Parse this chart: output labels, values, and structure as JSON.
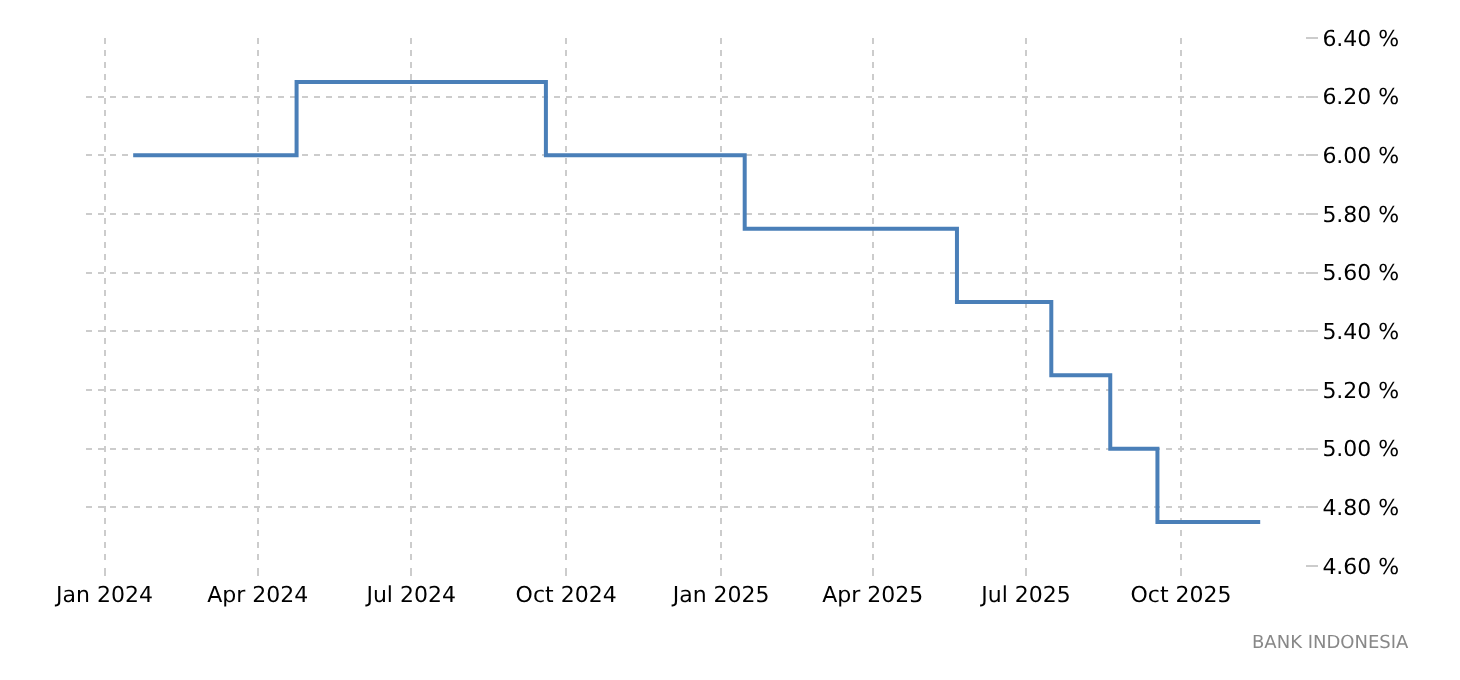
{
  "chart_data": {
    "type": "step",
    "x": [
      "2024-01-18",
      "2024-04-24",
      "2024-09-19",
      "2025-01-15",
      "2025-05-21",
      "2025-07-16",
      "2025-08-20",
      "2025-09-17",
      "2025-11-17"
    ],
    "series": [
      {
        "color": "#4a7fb8",
        "values": [
          6.0,
          6.25,
          6.0,
          5.75,
          5.5,
          5.25,
          5.0,
          4.75,
          4.75
        ]
      }
    ],
    "xlim": [
      "2023-12-21",
      "2025-12-13"
    ],
    "xticks": [
      {
        "value": "2024-01-01",
        "label": "Jan 2024"
      },
      {
        "value": "2024-04-01",
        "label": "Apr 2024"
      },
      {
        "value": "2024-07-01",
        "label": "Jul 2024"
      },
      {
        "value": "2024-10-01",
        "label": "Oct 2024"
      },
      {
        "value": "2025-01-01",
        "label": "Jan 2025"
      },
      {
        "value": "2025-04-01",
        "label": "Apr 2025"
      },
      {
        "value": "2025-07-01",
        "label": "Jul 2025"
      },
      {
        "value": "2025-10-01",
        "label": "Oct 2025"
      }
    ],
    "ylim": [
      4.6,
      6.4
    ],
    "yticks": [
      {
        "value": 4.6,
        "label": "4.60 %"
      },
      {
        "value": 4.8,
        "label": "4.80 %"
      },
      {
        "value": 5.0,
        "label": "5.00 %"
      },
      {
        "value": 5.2,
        "label": "5.20 %"
      },
      {
        "value": 5.4,
        "label": "5.40 %"
      },
      {
        "value": 5.6,
        "label": "5.60 %"
      },
      {
        "value": 5.8,
        "label": "5.80 %"
      },
      {
        "value": 6.0,
        "label": "6.00 %"
      },
      {
        "value": 6.2,
        "label": "6.20 %"
      },
      {
        "value": 6.4,
        "label": "6.40 %"
      }
    ],
    "grid": true,
    "legend": false,
    "marker": "none",
    "line_style": "solid",
    "annotations": [
      "BANK INDONESIA"
    ]
  }
}
